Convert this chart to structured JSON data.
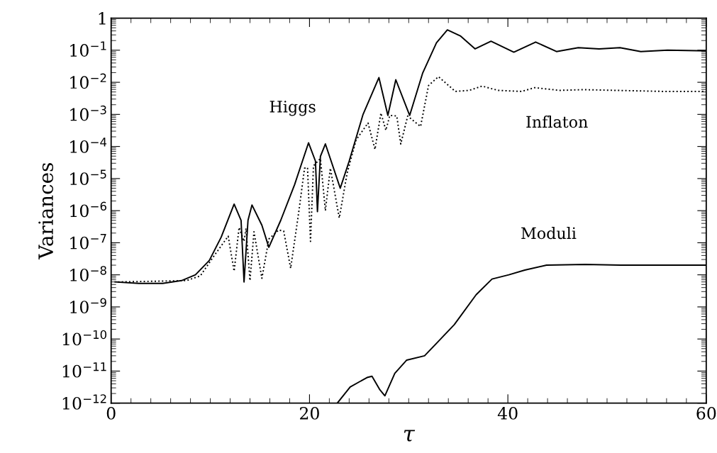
{
  "chart_data": {
    "type": "line",
    "xlabel": "τ",
    "ylabel": "Variances",
    "log": "y",
    "xlim": [
      0,
      60
    ],
    "xticks": [
      0,
      20,
      40,
      60
    ],
    "ylim": [
      1e-12,
      1
    ],
    "yticks": [
      {
        "value": 1,
        "label": "1"
      },
      {
        "value": 0.1,
        "label": "10$^{−1}$"
      },
      {
        "value": 0.01,
        "label": "10$^{−2}$"
      },
      {
        "value": 0.001,
        "label": "10$^{−3}$"
      },
      {
        "value": 0.0001,
        "label": "10$^{−4}$"
      },
      {
        "value": 1e-05,
        "label": "10$^{−5}$"
      },
      {
        "value": 1e-06,
        "label": "10$^{−6}$"
      },
      {
        "value": 1e-07,
        "label": "10$^{−7}$"
      },
      {
        "value": 1e-08,
        "label": "10$^{−8}$"
      },
      {
        "value": 1e-09,
        "label": "10$^{−9}$"
      },
      {
        "value": 1e-10,
        "label": "10$^{−10}$"
      },
      {
        "value": 1e-11,
        "label": "10$^{−11}$"
      },
      {
        "value": 1e-12,
        "label": "10$^{−12}$"
      }
    ],
    "grid": false,
    "legend": false,
    "marker": "none",
    "series": [
      {
        "name": "Higgs",
        "color": "#000000",
        "line_style": "solid",
        "x": [
          0.4,
          2.8,
          5.2,
          7.1,
          8.5,
          9.9,
          11.1,
          12.4,
          13.1,
          13.4,
          13.8,
          14.2,
          15.2,
          15.9,
          17.1,
          18.5,
          19.9,
          20.6,
          20.8,
          21.1,
          21.6,
          23.1,
          24.0,
          25.4,
          27.0,
          27.9,
          28.7,
          30.1,
          31.4,
          32.8,
          33.9,
          35.2,
          36.7,
          38.3,
          40.6,
          42.8,
          44.9,
          47.1,
          49.2,
          51.3,
          53.4,
          56.1,
          60
        ],
        "values": [
          6e-09,
          5.4e-09,
          5.4e-09,
          6.6e-09,
          1e-08,
          2.8e-08,
          1.5e-07,
          1.6e-06,
          5e-07,
          6e-09,
          5e-07,
          1.5e-06,
          3.5e-07,
          7.2e-08,
          5e-07,
          6.5e-06,
          0.00013,
          3.5e-05,
          9.3e-07,
          4.9e-05,
          0.00012,
          5e-06,
          3.5e-05,
          0.001,
          0.014,
          0.00093,
          0.012,
          0.00093,
          0.019,
          0.17,
          0.43,
          0.28,
          0.11,
          0.19,
          0.087,
          0.18,
          0.091,
          0.12,
          0.11,
          0.12,
          0.091,
          0.1,
          0.095
        ]
      },
      {
        "name": "Inflaton",
        "color": "#000000",
        "line_style": "dotted",
        "x": [
          0.7,
          7.6,
          9.0,
          10.4,
          11.8,
          12.4,
          12.9,
          13.4,
          13.6,
          14.0,
          14.4,
          15.2,
          15.9,
          16.9,
          17.4,
          18.1,
          18.9,
          19.5,
          19.8,
          20.1,
          20.4,
          21.1,
          21.6,
          22.1,
          23.0,
          23.8,
          24.7,
          25.9,
          26.6,
          27.2,
          27.7,
          28.1,
          28.8,
          29.2,
          29.9,
          31.2,
          32.0,
          33.0,
          34.7,
          36.1,
          37.4,
          39.0,
          41.4,
          42.7,
          45.2,
          47.6,
          50.9,
          55.6,
          60
        ],
        "values": [
          6e-09,
          6.6e-09,
          9.3e-09,
          4e-08,
          1.6e-07,
          1.3e-08,
          3e-07,
          1.1e-07,
          2.8e-07,
          6.6e-09,
          2.2e-07,
          7.8e-09,
          1.3e-07,
          2.5e-07,
          2.3e-07,
          1.6e-08,
          8.3e-07,
          2.1e-05,
          2.2e-05,
          1.1e-07,
          2.5e-05,
          4.2e-05,
          1e-06,
          2.1e-05,
          5.9e-07,
          1.5e-05,
          0.00016,
          0.00054,
          8.1e-05,
          0.0011,
          0.00032,
          0.00093,
          0.00089,
          0.00012,
          0.00089,
          0.00042,
          0.0079,
          0.015,
          0.0052,
          0.0056,
          0.0076,
          0.0056,
          0.0052,
          0.0068,
          0.0056,
          0.0059,
          0.0056,
          0.0052,
          0.0052
        ]
      },
      {
        "name": "Moduli",
        "color": "#000000",
        "line_style": "solid",
        "x": [
          22.8,
          24.1,
          25.8,
          26.3,
          27.1,
          27.6,
          28.6,
          29.8,
          31.6,
          32.9,
          34.6,
          36.8,
          38.4,
          40.1,
          41.7,
          43.9,
          47.8,
          51.4,
          60
        ],
        "values": [
          1e-12,
          3.2e-12,
          6.3e-12,
          6.9e-12,
          2.6e-12,
          1.7e-12,
          8.5e-12,
          2.2e-11,
          3e-11,
          7.9e-11,
          2.8e-10,
          2.4e-09,
          7.4e-09,
          1e-08,
          1.4e-08,
          2e-08,
          2.1e-08,
          2e-08,
          2e-08
        ]
      }
    ]
  }
}
